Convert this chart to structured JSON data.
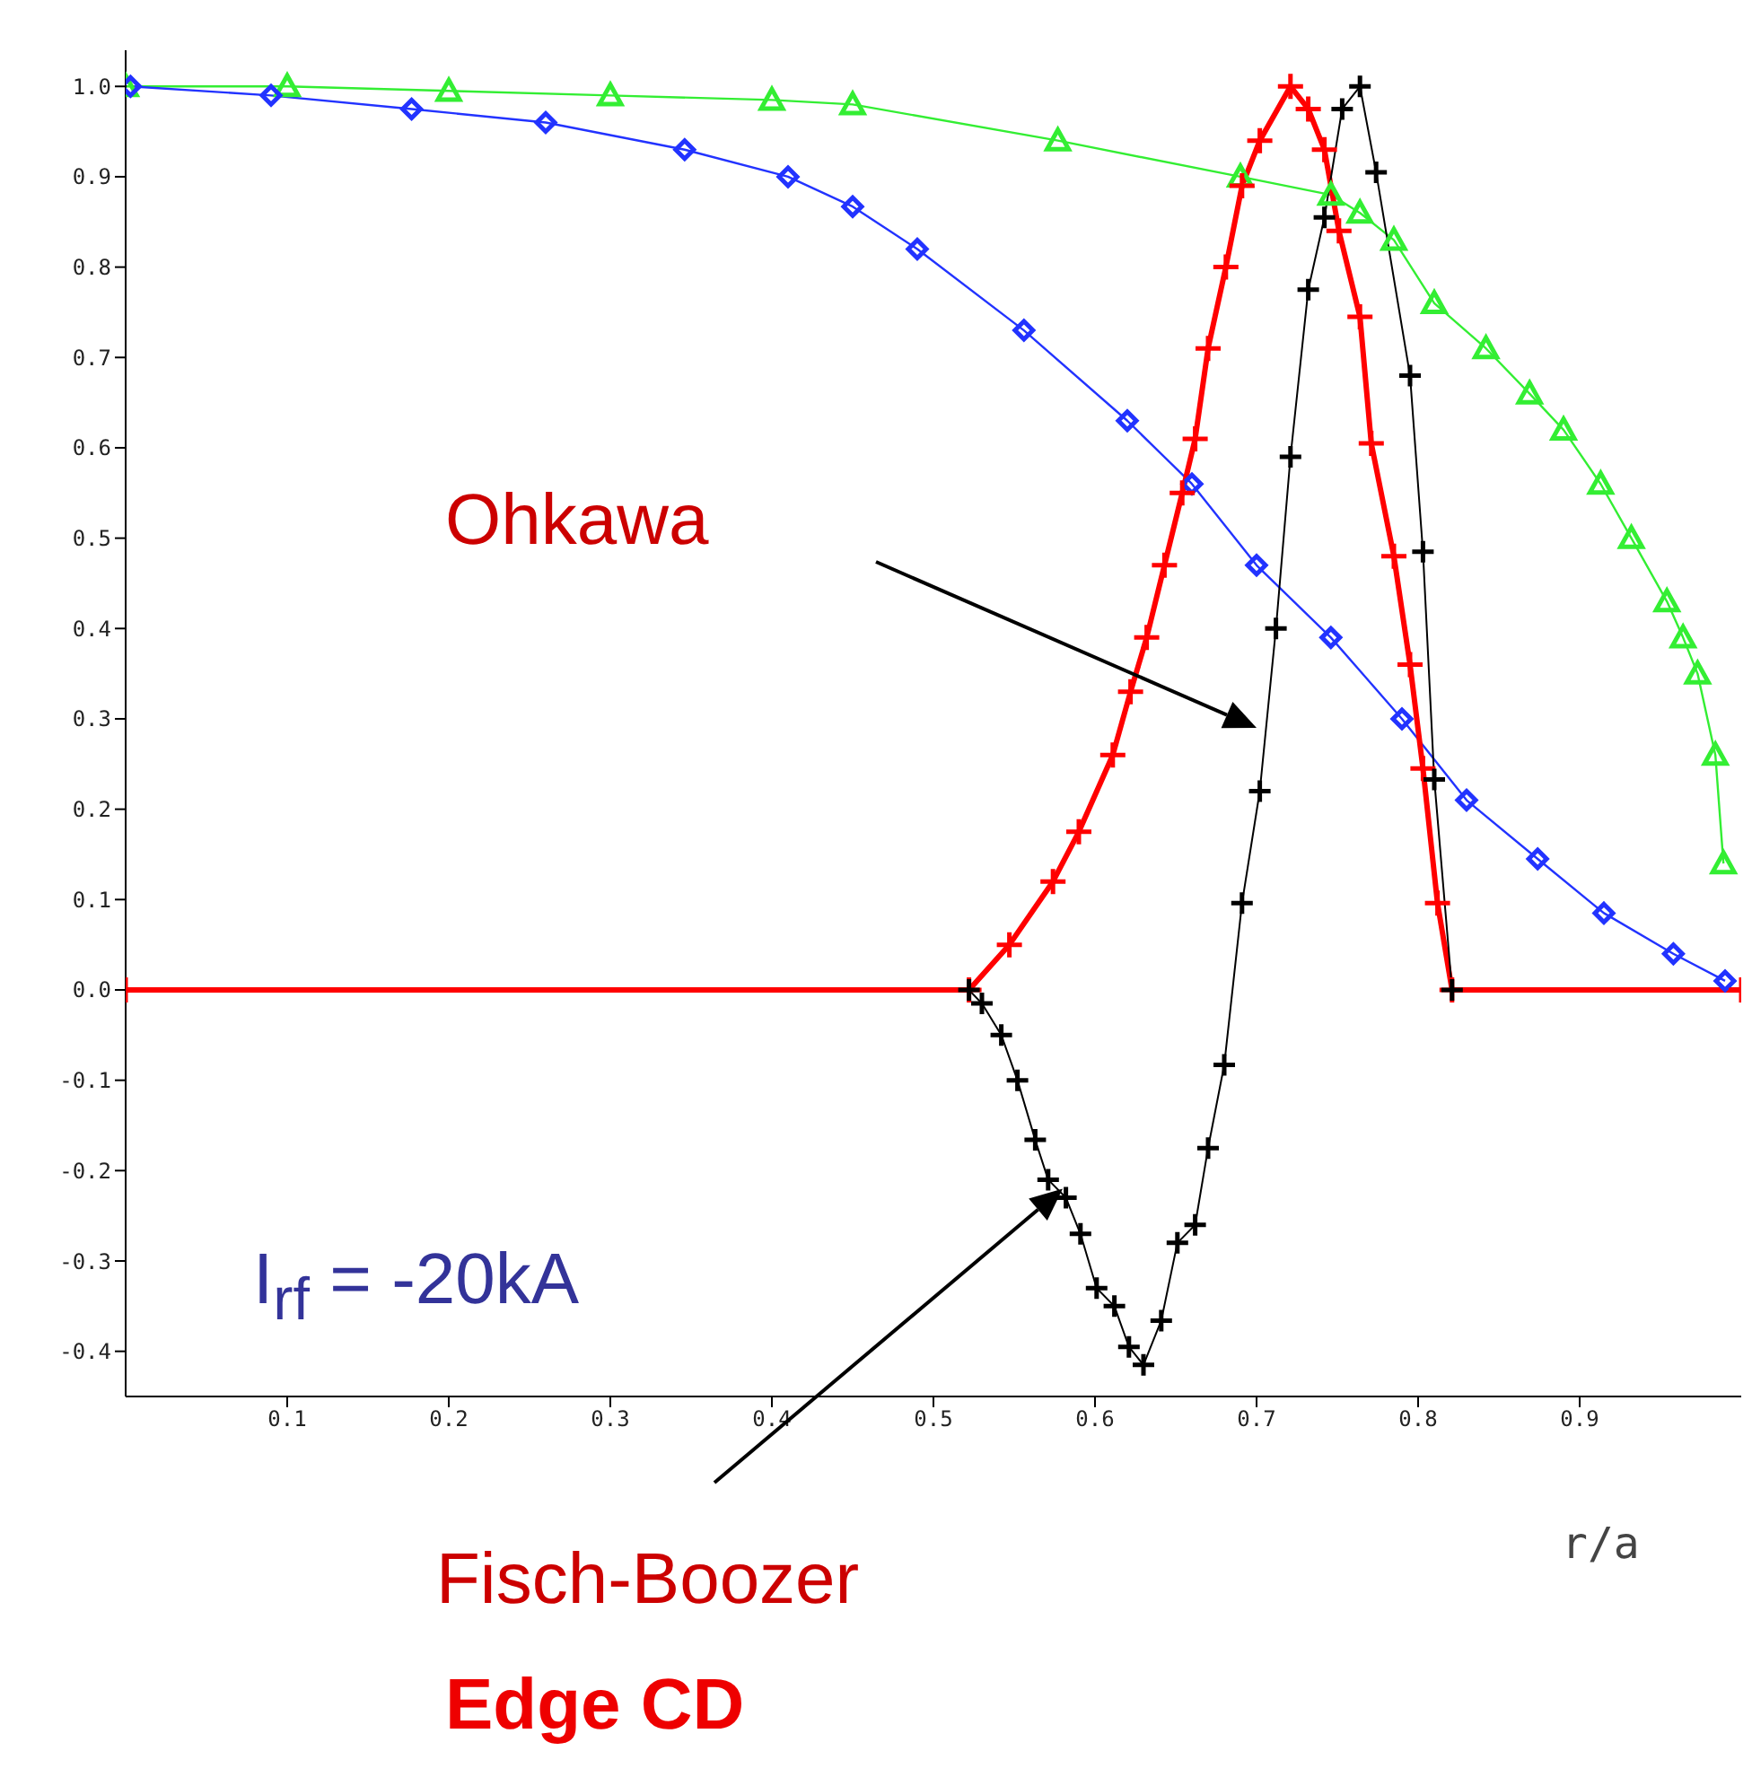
{
  "chart_data": {
    "type": "line",
    "xlabel": "r/a",
    "xlim": [
      0,
      1.0
    ],
    "xticks": [
      0.1,
      0.2,
      0.3,
      0.4,
      0.5,
      0.6,
      0.7,
      0.8,
      0.9
    ],
    "ylim": [
      -0.45,
      1.04
    ],
    "yticks": [
      {
        "value": -0.4,
        "label": "-0.4"
      },
      -0.3,
      -0.2,
      -0.1,
      {
        "value": 0,
        "label": "0.0"
      },
      0.1,
      0.2,
      0.3,
      0.4,
      0.5,
      0.6,
      0.7,
      0.8,
      0.9,
      {
        "value": 1,
        "label": "1.0"
      }
    ],
    "grid": false,
    "legend": false,
    "line_style": "solid",
    "series": [
      {
        "color": "#33ee33",
        "marker": "triangle",
        "x": [
          0,
          0.1,
          0.2,
          0.3,
          0.4,
          0.45,
          0.577,
          0.69,
          0.746,
          0.764,
          0.785,
          0.81,
          0.842,
          0.869,
          0.89,
          0.913,
          0.932,
          0.954,
          0.964,
          0.973,
          0.984,
          0.989
        ],
        "values": [
          1.0,
          1.0,
          0.995,
          0.99,
          0.985,
          0.98,
          0.94,
          0.9,
          0.88,
          0.86,
          0.83,
          0.76,
          0.71,
          0.66,
          0.62,
          0.56,
          0.5,
          0.43,
          0.39,
          0.35,
          0.26,
          0.14
        ]
      },
      {
        "color": "#2233ff",
        "marker": "diamond",
        "x": [
          0.003,
          0.09,
          0.177,
          0.26,
          0.346,
          0.41,
          0.45,
          0.49,
          0.556,
          0.62,
          0.66,
          0.7,
          0.746,
          0.79,
          0.83,
          0.874,
          0.915,
          0.958,
          0.99
        ],
        "values": [
          1.0,
          0.99,
          0.975,
          0.96,
          0.93,
          0.9,
          0.867,
          0.82,
          0.73,
          0.63,
          0.56,
          0.47,
          0.39,
          0.3,
          0.21,
          0.145,
          0.085,
          0.04,
          0.01
        ]
      },
      {
        "color": "#ff0000",
        "marker": "cross",
        "x": [
          0,
          0.522,
          0.547,
          0.574,
          0.59,
          0.611,
          0.622,
          0.632,
          0.643,
          0.654,
          0.662,
          0.67,
          0.681,
          0.691,
          0.702,
          0.721,
          0.732,
          0.742,
          0.751,
          0.764,
          0.771,
          0.785,
          0.795,
          0.803,
          0.812,
          0.821,
          1.0
        ],
        "values": [
          0,
          0,
          0.05,
          0.12,
          0.175,
          0.26,
          0.33,
          0.39,
          0.47,
          0.55,
          0.61,
          0.71,
          0.8,
          0.89,
          0.94,
          1.0,
          0.975,
          0.93,
          0.84,
          0.745,
          0.605,
          0.48,
          0.36,
          0.245,
          0.096,
          0,
          0
        ]
      },
      {
        "color": "#000000",
        "marker": "cross",
        "x": [
          0.522,
          0.53,
          0.542,
          0.552,
          0.563,
          0.571,
          0.582,
          0.591,
          0.601,
          0.612,
          0.621,
          0.63,
          0.641,
          0.651,
          0.662,
          0.67,
          0.68,
          0.691,
          0.702,
          0.712,
          0.721,
          0.732,
          0.742,
          0.753,
          0.764,
          0.774,
          0.795,
          0.803,
          0.81,
          0.821
        ],
        "values": [
          0,
          -0.015,
          -0.05,
          -0.1,
          -0.166,
          -0.21,
          -0.23,
          -0.27,
          -0.33,
          -0.35,
          -0.395,
          -0.415,
          -0.366,
          -0.28,
          -0.26,
          -0.175,
          -0.083,
          0.096,
          0.22,
          0.4,
          0.59,
          0.775,
          0.855,
          0.975,
          1.0,
          0.905,
          0.68,
          0.485,
          0.233,
          0
        ]
      }
    ],
    "annotations": [
      "Ohkawa",
      "Fisch-Boozer",
      "I$_{rf}$ = -20kA",
      "Edge CD"
    ]
  }
}
